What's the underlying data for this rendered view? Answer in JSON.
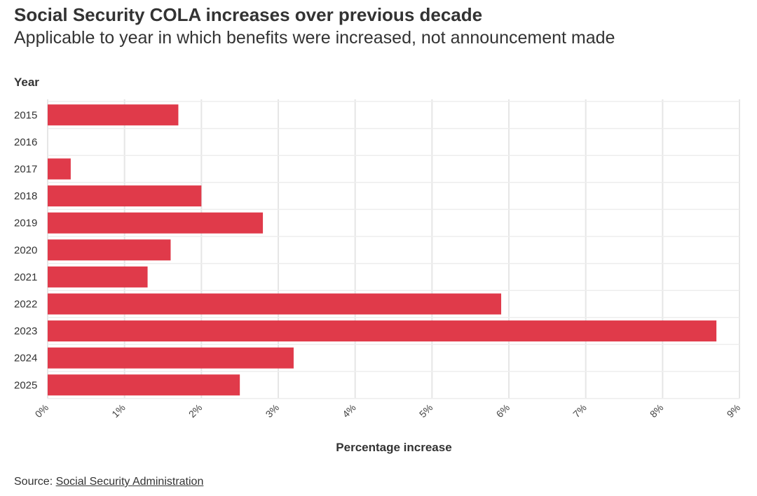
{
  "header": {
    "title": "Social Security COLA increases over previous decade",
    "subtitle": "Applicable to year in which benefits were increased, not announcement made"
  },
  "chart_data": {
    "type": "bar",
    "orientation": "horizontal",
    "title": "Social Security COLA increases over previous decade",
    "subtitle": "Applicable to year in which benefits were increased, not announcement made",
    "ylabel": "Year",
    "xlabel": "Percentage increase",
    "categories": [
      "2015",
      "2016",
      "2017",
      "2018",
      "2019",
      "2020",
      "2021",
      "2022",
      "2023",
      "2024",
      "2025"
    ],
    "values": [
      1.7,
      0,
      0.3,
      2.0,
      2.8,
      1.6,
      1.3,
      5.9,
      8.7,
      3.2,
      2.5
    ],
    "xlim": [
      0,
      9
    ],
    "x_ticks": [
      "0%",
      "1%",
      "2%",
      "3%",
      "4%",
      "5%",
      "6%",
      "7%",
      "8%",
      "9%"
    ],
    "grid": true,
    "bar_color": "#e03a4a"
  },
  "footer": {
    "source_label": "Source:",
    "source_link": "Social Security Administration"
  }
}
